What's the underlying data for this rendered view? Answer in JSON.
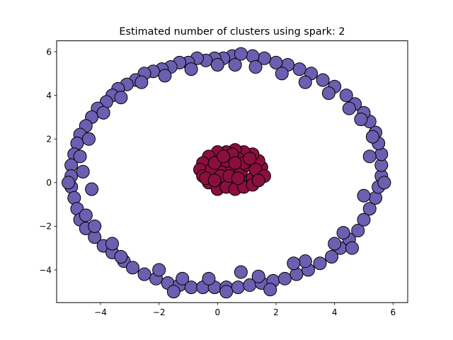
{
  "chart_data": {
    "type": "scatter",
    "title": "Estimated number of clusters using spark: 2",
    "xlabel": "",
    "ylabel": "",
    "xlim": [
      -5.5,
      6.5
    ],
    "ylim": [
      -5.5,
      6.5
    ],
    "x_ticks": [
      "−4",
      "−2",
      "0",
      "2",
      "4",
      "6"
    ],
    "y_ticks": [
      "−4",
      "−2",
      "0",
      "2",
      "4",
      "6"
    ],
    "x_tick_values": [
      -4,
      -2,
      0,
      2,
      4,
      6
    ],
    "y_tick_values": [
      -4,
      -2,
      0,
      2,
      4,
      6
    ],
    "grid": false,
    "legend": "none",
    "series": [
      {
        "color": "#6a5fb0",
        "points": [
          {
            "x": 0.5,
            "y": 5.8
          },
          {
            "x": 0.2,
            "y": 5.7
          },
          {
            "x": -0.1,
            "y": 5.7
          },
          {
            "x": -0.4,
            "y": 5.6
          },
          {
            "x": -0.7,
            "y": 5.7
          },
          {
            "x": -1.0,
            "y": 5.5
          },
          {
            "x": -1.3,
            "y": 5.5
          },
          {
            "x": -1.6,
            "y": 5.3
          },
          {
            "x": -1.9,
            "y": 5.2
          },
          {
            "x": -2.2,
            "y": 5.1
          },
          {
            "x": -2.5,
            "y": 5.0
          },
          {
            "x": -2.8,
            "y": 4.7
          },
          {
            "x": -3.1,
            "y": 4.5
          },
          {
            "x": -3.4,
            "y": 4.3
          },
          {
            "x": -3.6,
            "y": 4.0
          },
          {
            "x": -3.8,
            "y": 3.7
          },
          {
            "x": -4.1,
            "y": 3.4
          },
          {
            "x": -4.3,
            "y": 3.0
          },
          {
            "x": -4.5,
            "y": 2.6
          },
          {
            "x": -4.7,
            "y": 2.2
          },
          {
            "x": -4.8,
            "y": 1.8
          },
          {
            "x": -4.9,
            "y": 1.3
          },
          {
            "x": -5.0,
            "y": 0.8
          },
          {
            "x": -5.0,
            "y": 0.3
          },
          {
            "x": -5.0,
            "y": -0.2
          },
          {
            "x": -4.9,
            "y": -0.7
          },
          {
            "x": -4.8,
            "y": -1.2
          },
          {
            "x": -4.7,
            "y": -1.7
          },
          {
            "x": -4.5,
            "y": -2.1
          },
          {
            "x": -4.2,
            "y": -2.5
          },
          {
            "x": -3.9,
            "y": -2.9
          },
          {
            "x": -3.6,
            "y": -3.2
          },
          {
            "x": -3.2,
            "y": -3.6
          },
          {
            "x": -2.9,
            "y": -3.9
          },
          {
            "x": -2.5,
            "y": -4.2
          },
          {
            "x": -2.1,
            "y": -4.4
          },
          {
            "x": -1.7,
            "y": -4.6
          },
          {
            "x": -1.3,
            "y": -4.7
          },
          {
            "x": -0.9,
            "y": -4.8
          },
          {
            "x": -0.5,
            "y": -4.8
          },
          {
            "x": -0.1,
            "y": -4.8
          },
          {
            "x": 0.3,
            "y": -4.8
          },
          {
            "x": 0.7,
            "y": -4.8
          },
          {
            "x": 1.1,
            "y": -4.7
          },
          {
            "x": 1.5,
            "y": -4.6
          },
          {
            "x": 1.9,
            "y": -4.5
          },
          {
            "x": 2.3,
            "y": -4.4
          },
          {
            "x": 2.7,
            "y": -4.2
          },
          {
            "x": 3.1,
            "y": -4.0
          },
          {
            "x": 3.5,
            "y": -3.7
          },
          {
            "x": 3.9,
            "y": -3.4
          },
          {
            "x": 4.2,
            "y": -3.0
          },
          {
            "x": 4.5,
            "y": -2.6
          },
          {
            "x": 4.8,
            "y": -2.2
          },
          {
            "x": 5.0,
            "y": -1.7
          },
          {
            "x": 5.2,
            "y": -1.2
          },
          {
            "x": 5.4,
            "y": -0.7
          },
          {
            "x": 5.5,
            "y": -0.2
          },
          {
            "x": 5.6,
            "y": 0.3
          },
          {
            "x": 5.6,
            "y": 0.8
          },
          {
            "x": 5.6,
            "y": 1.3
          },
          {
            "x": 5.5,
            "y": 1.8
          },
          {
            "x": 5.4,
            "y": 2.3
          },
          {
            "x": 5.2,
            "y": 2.8
          },
          {
            "x": 5.0,
            "y": 3.2
          },
          {
            "x": 4.7,
            "y": 3.6
          },
          {
            "x": 4.4,
            "y": 4.0
          },
          {
            "x": 4.0,
            "y": 4.4
          },
          {
            "x": 3.6,
            "y": 4.7
          },
          {
            "x": 3.2,
            "y": 5.0
          },
          {
            "x": 2.8,
            "y": 5.2
          },
          {
            "x": 2.4,
            "y": 5.4
          },
          {
            "x": 2.0,
            "y": 5.5
          },
          {
            "x": 1.6,
            "y": 5.7
          },
          {
            "x": 1.2,
            "y": 5.8
          },
          {
            "x": 0.8,
            "y": 5.9
          },
          {
            "x": 0.0,
            "y": 5.4
          },
          {
            "x": -1.8,
            "y": 4.9
          },
          {
            "x": -3.3,
            "y": 3.9
          },
          {
            "x": -4.4,
            "y": 2.0
          },
          {
            "x": -4.6,
            "y": 0.5
          },
          {
            "x": -4.5,
            "y": -1.5
          },
          {
            "x": -3.6,
            "y": -2.8
          },
          {
            "x": -2.0,
            "y": -4.0
          },
          {
            "x": -0.3,
            "y": -4.4
          },
          {
            "x": 1.4,
            "y": -4.3
          },
          {
            "x": 3.0,
            "y": -3.6
          },
          {
            "x": 4.3,
            "y": -2.3
          },
          {
            "x": 5.0,
            "y": -0.6
          },
          {
            "x": 5.2,
            "y": 1.2
          },
          {
            "x": 4.9,
            "y": 2.9
          },
          {
            "x": 3.8,
            "y": 4.1
          },
          {
            "x": 2.2,
            "y": 5.0
          },
          {
            "x": 0.6,
            "y": 5.4
          },
          {
            "x": -2.6,
            "y": 4.6
          },
          {
            "x": -3.9,
            "y": 3.2
          },
          {
            "x": -4.7,
            "y": 1.2
          },
          {
            "x": -4.3,
            "y": -0.3
          },
          {
            "x": -3.3,
            "y": -3.4
          },
          {
            "x": -1.2,
            "y": -4.4
          },
          {
            "x": 0.8,
            "y": -4.1
          },
          {
            "x": 2.6,
            "y": -3.7
          },
          {
            "x": 4.0,
            "y": -2.8
          },
          {
            "x": 5.3,
            "y": 2.1
          },
          {
            "x": 4.5,
            "y": 3.4
          },
          {
            "x": 3.0,
            "y": 4.6
          },
          {
            "x": 1.3,
            "y": 5.3
          },
          {
            "x": -0.9,
            "y": 5.2
          },
          {
            "x": -4.2,
            "y": -2.0
          },
          {
            "x": 5.7,
            "y": 0.0
          },
          {
            "x": -5.1,
            "y": 0.0
          },
          {
            "x": 0.3,
            "y": -5.0
          },
          {
            "x": 1.8,
            "y": -4.9
          },
          {
            "x": -1.5,
            "y": -5.0
          },
          {
            "x": 4.6,
            "y": -3.0
          }
        ]
      },
      {
        "color": "#8b0f3e",
        "points": [
          {
            "x": 0.0,
            "y": 0.0
          },
          {
            "x": 0.3,
            "y": 0.1
          },
          {
            "x": 0.6,
            "y": 0.0
          },
          {
            "x": 0.9,
            "y": 0.1
          },
          {
            "x": 1.2,
            "y": 0.2
          },
          {
            "x": 1.4,
            "y": 0.4
          },
          {
            "x": 1.5,
            "y": 0.7
          },
          {
            "x": 1.4,
            "y": 1.0
          },
          {
            "x": 1.2,
            "y": 1.3
          },
          {
            "x": 0.9,
            "y": 1.4
          },
          {
            "x": 0.6,
            "y": 1.5
          },
          {
            "x": 0.3,
            "y": 1.4
          },
          {
            "x": 0.0,
            "y": 1.4
          },
          {
            "x": -0.3,
            "y": 1.2
          },
          {
            "x": -0.5,
            "y": 0.9
          },
          {
            "x": -0.6,
            "y": 0.6
          },
          {
            "x": -0.5,
            "y": 0.3
          },
          {
            "x": -0.3,
            "y": 0.0
          },
          {
            "x": 0.0,
            "y": -0.3
          },
          {
            "x": 0.3,
            "y": -0.2
          },
          {
            "x": 0.6,
            "y": -0.3
          },
          {
            "x": 0.9,
            "y": -0.2
          },
          {
            "x": 1.2,
            "y": -0.1
          },
          {
            "x": 0.2,
            "y": 0.5
          },
          {
            "x": 0.5,
            "y": 0.7
          },
          {
            "x": 0.8,
            "y": 0.5
          },
          {
            "x": 1.0,
            "y": 0.8
          },
          {
            "x": 0.3,
            "y": 1.0
          },
          {
            "x": 0.7,
            "y": 1.1
          },
          {
            "x": -0.2,
            "y": 0.6
          },
          {
            "x": 1.3,
            "y": 0.6
          },
          {
            "x": 0.1,
            "y": 0.3
          },
          {
            "x": 0.4,
            "y": 0.3
          },
          {
            "x": 0.9,
            "y": 0.9
          },
          {
            "x": -0.1,
            "y": 0.9
          },
          {
            "x": 0.5,
            "y": 1.3
          },
          {
            "x": 1.6,
            "y": 0.3
          },
          {
            "x": -0.4,
            "y": 0.2
          },
          {
            "x": 0.7,
            "y": 0.2
          },
          {
            "x": 1.1,
            "y": 1.1
          },
          {
            "x": 0.2,
            "y": 1.2
          },
          {
            "x": 0.6,
            "y": 0.9
          },
          {
            "x": -0.1,
            "y": 0.1
          },
          {
            "x": 1.4,
            "y": 0.1
          }
        ]
      }
    ]
  }
}
